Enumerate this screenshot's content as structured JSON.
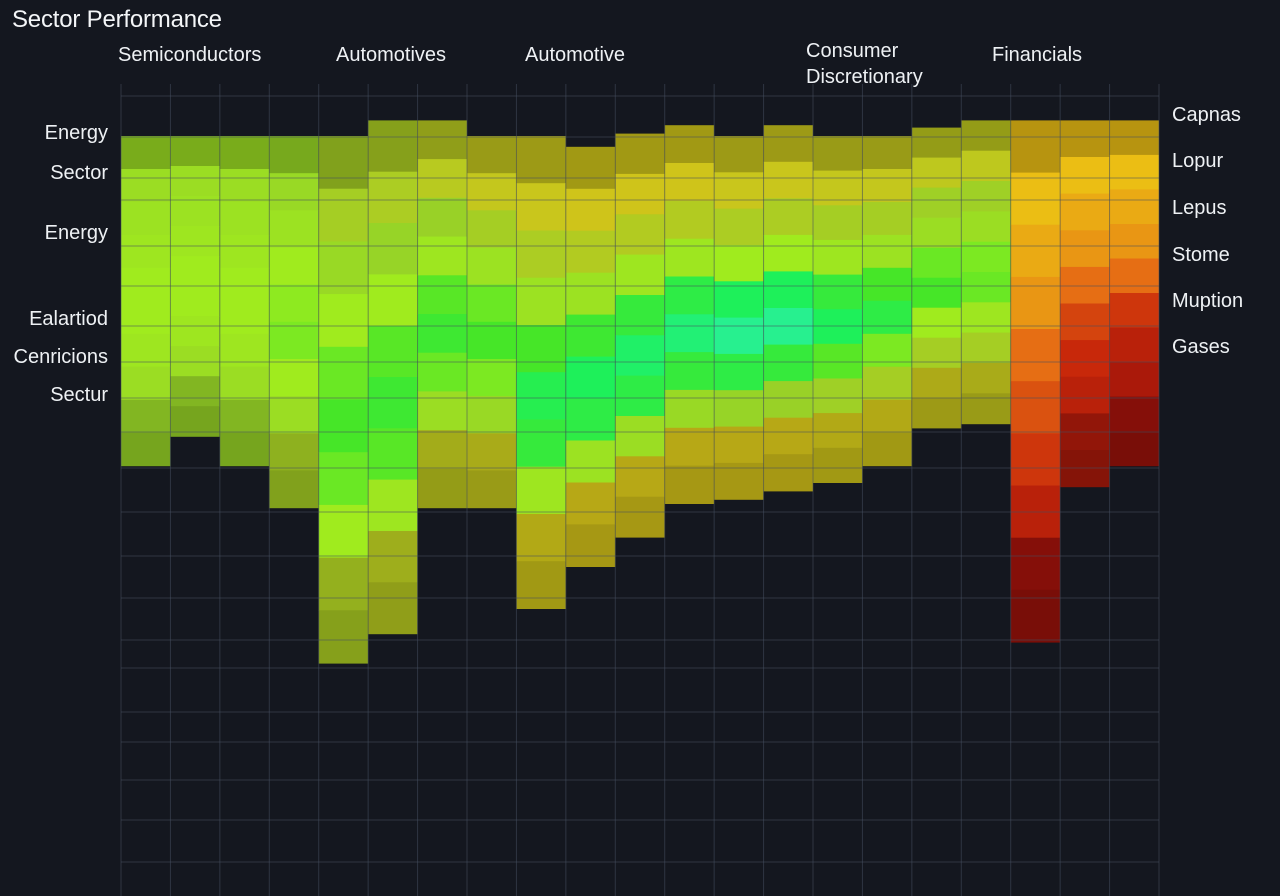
{
  "title": "Sector Performance",
  "chart_data": {
    "type": "heatmap",
    "column_group_labels": [
      "Semiconductors",
      "Automotives",
      "Automotive",
      "Consumer\nDiscretionary",
      "Financials"
    ],
    "row_labels_left": [
      "Energy",
      "Sector",
      "Energy",
      "Ealartiod",
      "Cenricions",
      "Sectur"
    ],
    "row_labels_right": [
      "Capnas",
      "Lopur",
      "Lepus",
      "Stome",
      "Muption",
      "Gases"
    ],
    "columns": 21,
    "column_top_index": [
      0.13,
      0.13,
      0.13,
      0.13,
      0.13,
      0.0,
      0.0,
      0.13,
      0.13,
      0.22,
      0.11,
      0.04,
      0.13,
      0.04,
      0.13,
      0.13,
      0.06,
      0.0,
      0.0,
      0.0,
      0.0
    ],
    "column_bottom_index": [
      0.78,
      0.71,
      0.78,
      0.88,
      1.25,
      1.18,
      0.88,
      0.88,
      1.12,
      1.02,
      0.95,
      0.87,
      0.86,
      0.84,
      0.82,
      0.78,
      0.69,
      0.68,
      1.2,
      0.83,
      0.78
    ],
    "column_values": [
      [
        0.6,
        0.62,
        0.64,
        0.66,
        0.66,
        0.64,
        0.6,
        0.56
      ],
      [
        0.6,
        0.62,
        0.64,
        0.66,
        0.66,
        0.64,
        0.6,
        0.56
      ],
      [
        0.6,
        0.62,
        0.64,
        0.66,
        0.66,
        0.64,
        0.6,
        0.56
      ],
      [
        0.58,
        0.62,
        0.66,
        0.68,
        0.7,
        0.66,
        0.6,
        0.5
      ],
      [
        0.5,
        0.58,
        0.66,
        0.72,
        0.76,
        0.72,
        0.66,
        0.48
      ],
      [
        0.48,
        0.56,
        0.66,
        0.74,
        0.78,
        0.74,
        0.64,
        0.44
      ],
      [
        0.44,
        0.54,
        0.64,
        0.74,
        0.78,
        0.72,
        0.6,
        0.42
      ],
      [
        0.4,
        0.5,
        0.62,
        0.72,
        0.76,
        0.7,
        0.58,
        0.4
      ],
      [
        0.38,
        0.48,
        0.62,
        0.76,
        0.84,
        0.8,
        0.64,
        0.36
      ],
      [
        0.36,
        0.46,
        0.62,
        0.78,
        0.86,
        0.82,
        0.62,
        0.34
      ],
      [
        0.36,
        0.46,
        0.64,
        0.8,
        0.88,
        0.82,
        0.6,
        0.34
      ],
      [
        0.36,
        0.46,
        0.64,
        0.82,
        0.9,
        0.8,
        0.58,
        0.34
      ],
      [
        0.38,
        0.48,
        0.66,
        0.86,
        0.94,
        0.82,
        0.56,
        0.34
      ],
      [
        0.38,
        0.48,
        0.66,
        0.86,
        0.94,
        0.8,
        0.54,
        0.34
      ],
      [
        0.4,
        0.5,
        0.64,
        0.8,
        0.86,
        0.74,
        0.52,
        0.36
      ],
      [
        0.4,
        0.5,
        0.62,
        0.76,
        0.82,
        0.7,
        0.5,
        0.36
      ],
      [
        0.42,
        0.52,
        0.6,
        0.72,
        0.76,
        0.66,
        0.5,
        0.38
      ],
      [
        0.42,
        0.52,
        0.6,
        0.7,
        0.72,
        0.64,
        0.5,
        0.4
      ],
      [
        0.26,
        0.24,
        0.22,
        0.18,
        0.14,
        0.1,
        0.06,
        0.02
      ],
      [
        0.26,
        0.24,
        0.22,
        0.18,
        0.12,
        0.08,
        0.06,
        0.04
      ],
      [
        0.26,
        0.24,
        0.22,
        0.18,
        0.1,
        0.06,
        0.04,
        0.02
      ]
    ],
    "grid": true,
    "legend": "none"
  }
}
